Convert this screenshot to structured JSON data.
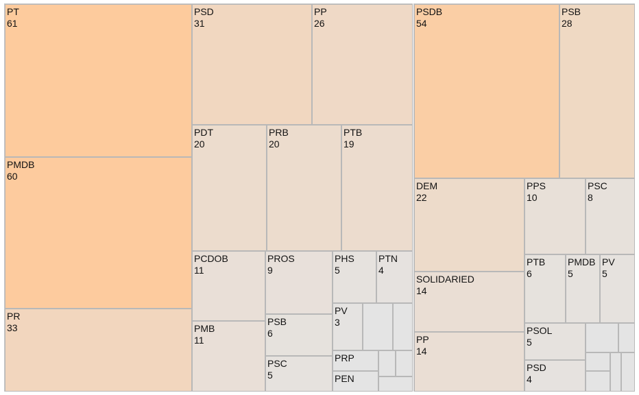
{
  "chart_data": [
    {
      "type": "treemap",
      "value_range": [
        0,
        61
      ],
      "colors": {
        "low": "#e4e4e4",
        "high": "#fdcb9d",
        "border": "#b8b8b8"
      },
      "tiles": [
        {
          "label": "PT",
          "value": 61
        },
        {
          "label": "PMDB",
          "value": 60
        },
        {
          "label": "PR",
          "value": 33
        },
        {
          "label": "PSD",
          "value": 31
        },
        {
          "label": "PP",
          "value": 26
        },
        {
          "label": "PDT",
          "value": 20
        },
        {
          "label": "PRB",
          "value": 20
        },
        {
          "label": "PTB",
          "value": 19
        },
        {
          "label": "PCDOB",
          "value": 11
        },
        {
          "label": "PMB",
          "value": 11
        },
        {
          "label": "PROS",
          "value": 9
        },
        {
          "label": "PSB",
          "value": 6
        },
        {
          "label": "PSC",
          "value": 5
        },
        {
          "label": "PHS",
          "value": 5
        },
        {
          "label": "PTN",
          "value": 4
        },
        {
          "label": "PV",
          "value": 3
        },
        {
          "label": "PRP",
          "value": null
        },
        {
          "label": "PEN",
          "value": null
        },
        {
          "label": "",
          "value": null
        },
        {
          "label": "",
          "value": null
        },
        {
          "label": "",
          "value": null
        },
        {
          "label": "",
          "value": null
        },
        {
          "label": "",
          "value": null
        }
      ]
    },
    {
      "type": "treemap",
      "value_range": [
        0,
        61
      ],
      "colors": {
        "low": "#e4e4e4",
        "high": "#fdcb9d",
        "border": "#b8b8b8"
      },
      "tiles": [
        {
          "label": "PSDB",
          "value": 54
        },
        {
          "label": "PSB",
          "value": 28
        },
        {
          "label": "DEM",
          "value": 22
        },
        {
          "label": "SOLIDARIED",
          "value": 14
        },
        {
          "label": "PP",
          "value": 14
        },
        {
          "label": "PPS",
          "value": 10
        },
        {
          "label": "PSC",
          "value": 8
        },
        {
          "label": "PTB",
          "value": 6
        },
        {
          "label": "PMDB",
          "value": 5
        },
        {
          "label": "PV",
          "value": 5
        },
        {
          "label": "PSOL",
          "value": 5
        },
        {
          "label": "PSD",
          "value": 4
        },
        {
          "label": "",
          "value": null
        },
        {
          "label": "",
          "value": null
        },
        {
          "label": "",
          "value": null
        },
        {
          "label": "",
          "value": null
        },
        {
          "label": "",
          "value": null
        },
        {
          "label": "",
          "value": null
        }
      ]
    }
  ]
}
